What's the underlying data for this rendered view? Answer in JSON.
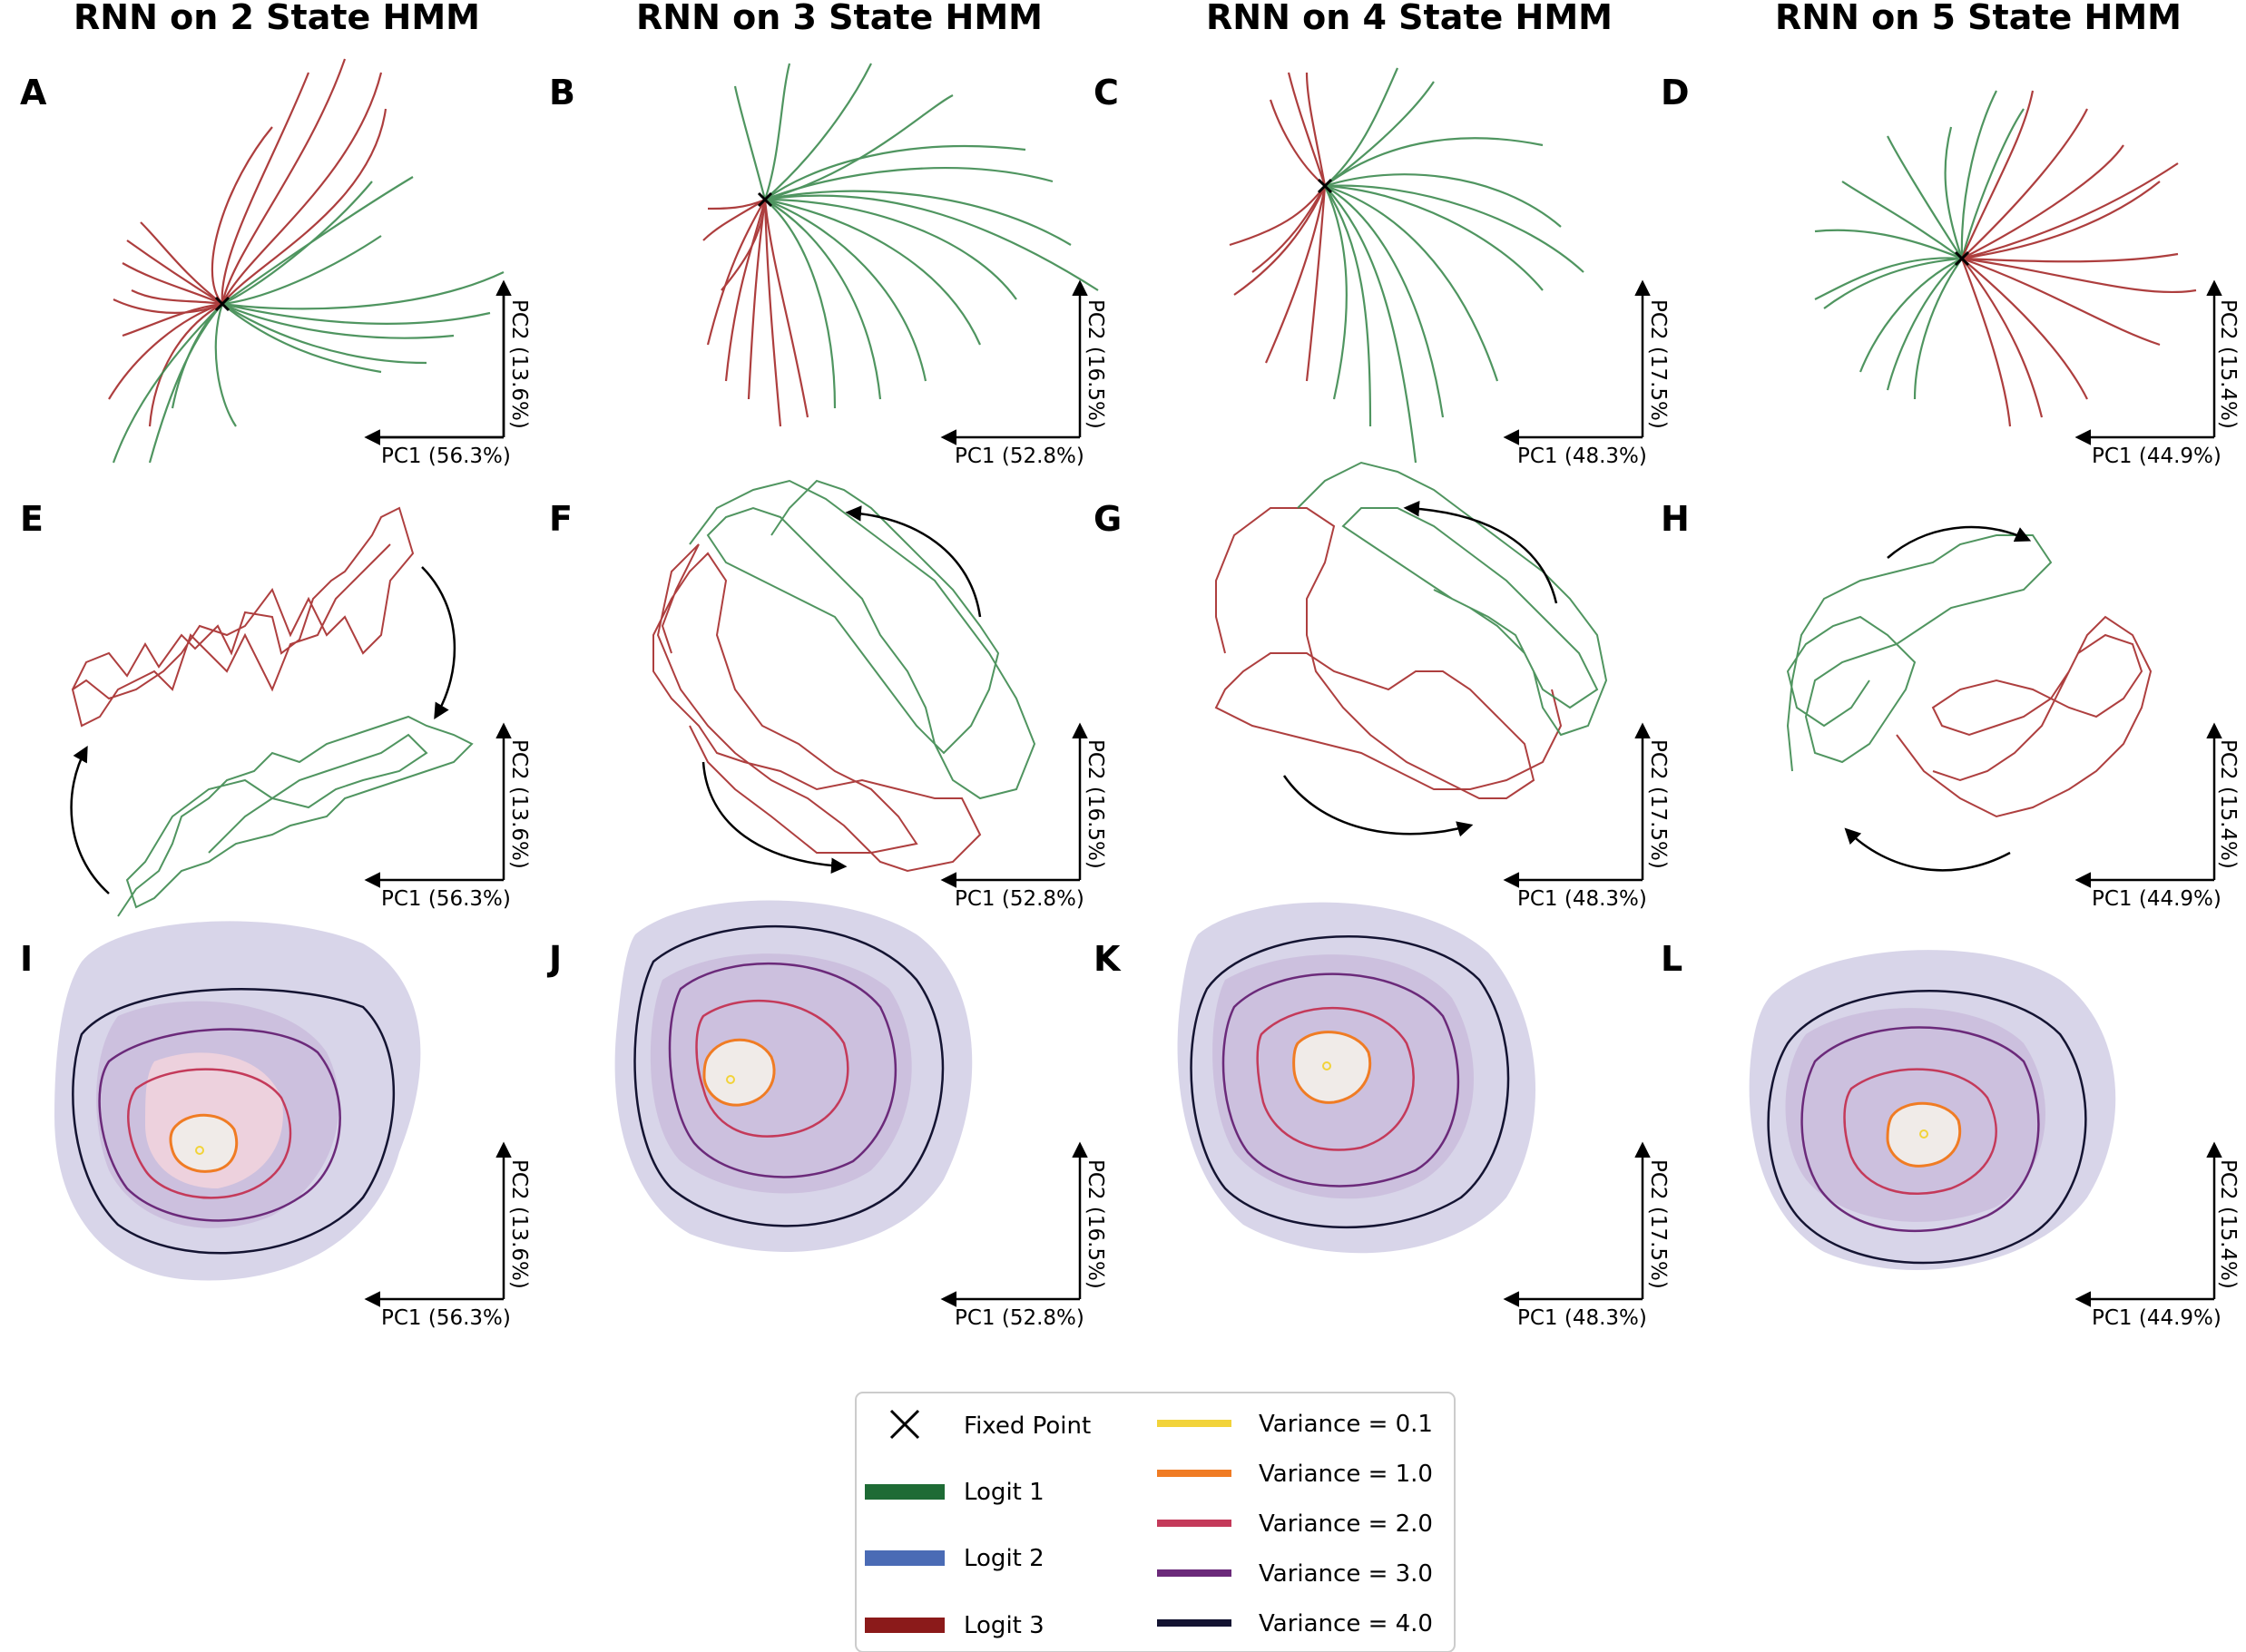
{
  "columns": [
    {
      "title": "RNN on 2 State HMM",
      "pc1": "PC1 (56.3%)",
      "pc2": "PC2 (13.6%)",
      "panels": [
        "A",
        "E",
        "I"
      ]
    },
    {
      "title": "RNN on 3 State HMM",
      "pc1": "PC1 (52.8%)",
      "pc2": "PC2 (16.5%)",
      "panels": [
        "B",
        "F",
        "J"
      ]
    },
    {
      "title": "RNN on 4 State HMM",
      "pc1": "PC1 (48.3%)",
      "pc2": "PC2 (17.5%)",
      "panels": [
        "C",
        "G",
        "K"
      ]
    },
    {
      "title": "RNN on 5 State HMM",
      "pc1": "PC1 (44.9%)",
      "pc2": "PC2 (15.4%)",
      "panels": [
        "D",
        "H",
        "L"
      ]
    }
  ],
  "legend": {
    "fixed_point": "Fixed Point",
    "logits": [
      {
        "label": "Logit 1",
        "color": "#1e6b35"
      },
      {
        "label": "Logit 2",
        "color": "#4a6bb5"
      },
      {
        "label": "Logit 3",
        "color": "#8b1a1a"
      }
    ],
    "variances": [
      {
        "label": "Variance = 0.1",
        "color": "#f2d33a"
      },
      {
        "label": "Variance = 1.0",
        "color": "#f07c24"
      },
      {
        "label": "Variance = 2.0",
        "color": "#c43a5a"
      },
      {
        "label": "Variance = 3.0",
        "color": "#6b2a7a"
      },
      {
        "label": "Variance = 4.0",
        "color": "#141432"
      }
    ]
  },
  "colors": {
    "green_trajectory": "#3d8a4f",
    "red_trajectory": "#a52a2a",
    "density_fill": "#c8c3e0"
  }
}
